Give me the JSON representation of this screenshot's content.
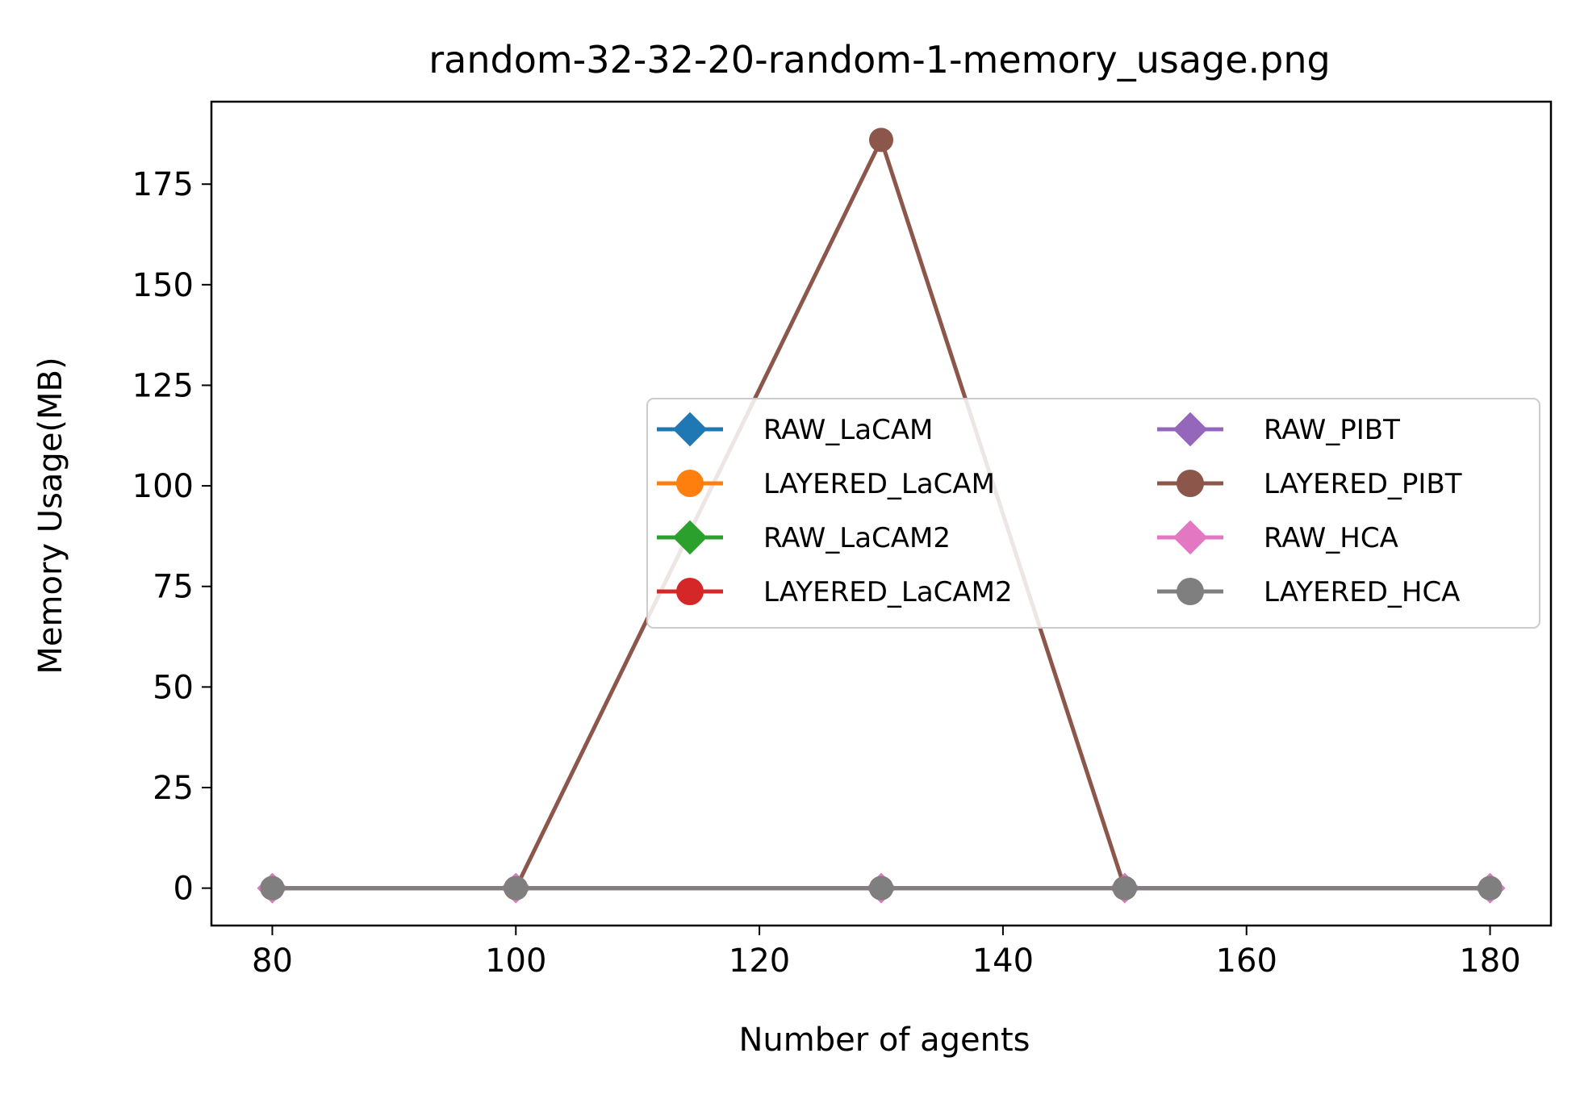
{
  "chart_data": {
    "type": "line",
    "title": "random-32-32-20-random-1-memory_usage.png",
    "xlabel": "Number of agents",
    "ylabel": "Memory Usage(MB)",
    "xlim": [
      75,
      185
    ],
    "ylim": [
      -9.3,
      195.5
    ],
    "xticks": [
      80,
      100,
      120,
      140,
      160,
      180
    ],
    "yticks": [
      0,
      25,
      50,
      75,
      100,
      125,
      150,
      175
    ],
    "grid": false,
    "legend_position": "center-right",
    "legend_columns": 2,
    "x": [
      80,
      100,
      130,
      150,
      180
    ],
    "series": [
      {
        "name": "RAW_LaCAM",
        "color": "#1f77b4",
        "marker": "diamond",
        "values": [
          0,
          0,
          0,
          0,
          0
        ]
      },
      {
        "name": "LAYERED_LaCAM",
        "color": "#ff7f0e",
        "marker": "circle",
        "values": [
          0,
          0,
          0,
          0,
          0
        ]
      },
      {
        "name": "RAW_LaCAM2",
        "color": "#2ca02c",
        "marker": "diamond",
        "values": [
          0,
          0,
          0,
          0,
          0
        ]
      },
      {
        "name": "LAYERED_LaCAM2",
        "color": "#d62728",
        "marker": "circle",
        "values": [
          0,
          0,
          0,
          0,
          0
        ]
      },
      {
        "name": "RAW_PIBT",
        "color": "#9467bd",
        "marker": "diamond",
        "values": [
          0,
          0,
          0,
          0,
          0
        ]
      },
      {
        "name": "LAYERED_PIBT",
        "color": "#8c564b",
        "marker": "circle",
        "values": [
          0,
          0,
          186,
          0,
          0
        ]
      },
      {
        "name": "RAW_HCA",
        "color": "#e377c2",
        "marker": "diamond",
        "values": [
          0,
          0,
          0,
          0,
          0
        ]
      },
      {
        "name": "LAYERED_HCA",
        "color": "#7f7f7f",
        "marker": "circle",
        "values": [
          0,
          0,
          0,
          0,
          0
        ]
      }
    ]
  }
}
